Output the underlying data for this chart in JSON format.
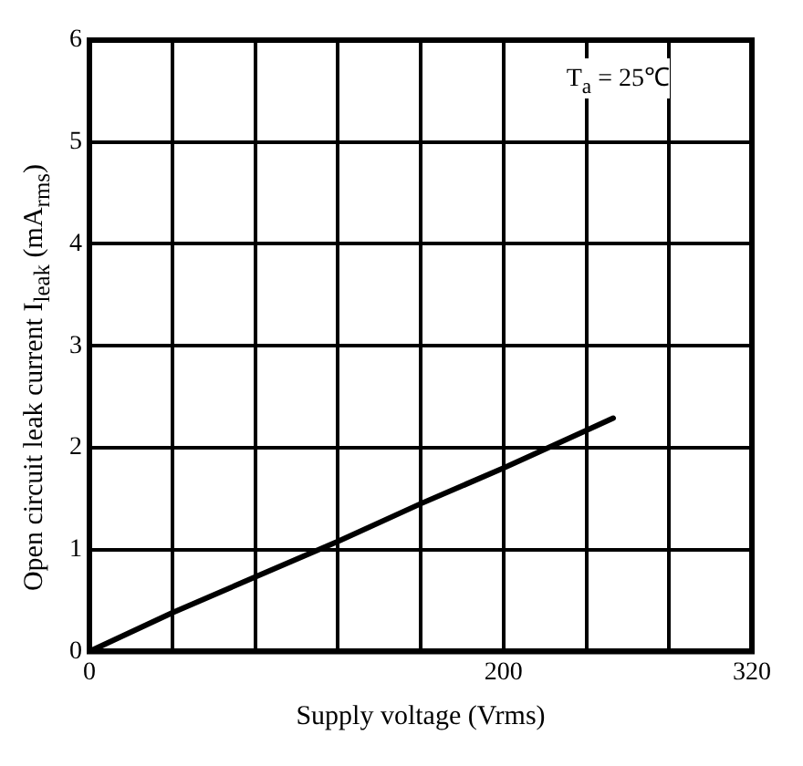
{
  "chart_data": {
    "type": "line",
    "xlabel": "Supply voltage (Vrms)",
    "ylabel": "Open circuit leak current I$_{leak}$ (mA$_{rms}$)",
    "annotations": [
      "T$_{a}$ = 25℃"
    ],
    "x": [
      0,
      40,
      80,
      120,
      160,
      200,
      240,
      253
    ],
    "series": [
      {
        "color": "#000000",
        "values": [
          0,
          0.38,
          0.73,
          1.08,
          1.45,
          1.8,
          2.17,
          2.29
        ]
      }
    ],
    "xlim": [
      0,
      320
    ],
    "xticks": [
      0,
      {
        "value": 40,
        "label": null
      },
      {
        "value": 80,
        "label": null
      },
      {
        "value": 120,
        "label": null
      },
      {
        "value": 160,
        "label": null
      },
      200,
      {
        "value": 240,
        "label": null
      },
      {
        "value": 280,
        "label": null
      },
      320
    ],
    "ylim": [
      0,
      6
    ],
    "yticks": [
      0,
      1,
      2,
      3,
      4,
      5,
      6
    ],
    "grid": true,
    "legend": false,
    "marker": "none",
    "line_style": "solid"
  }
}
